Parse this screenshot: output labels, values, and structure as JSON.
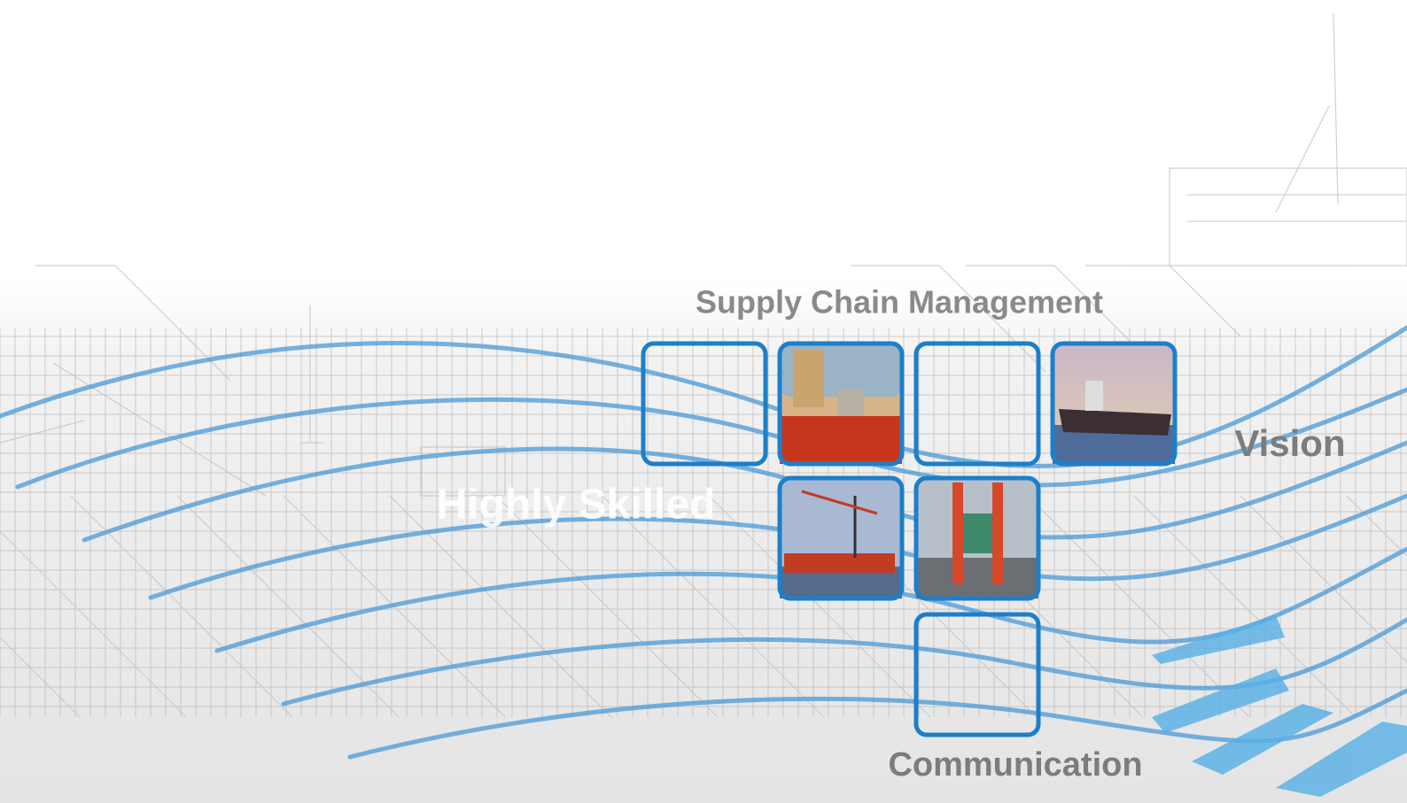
{
  "headings": [
    "Supply Chain Management",
    "Highly Skilled",
    "Vision",
    "Communication"
  ]
}
